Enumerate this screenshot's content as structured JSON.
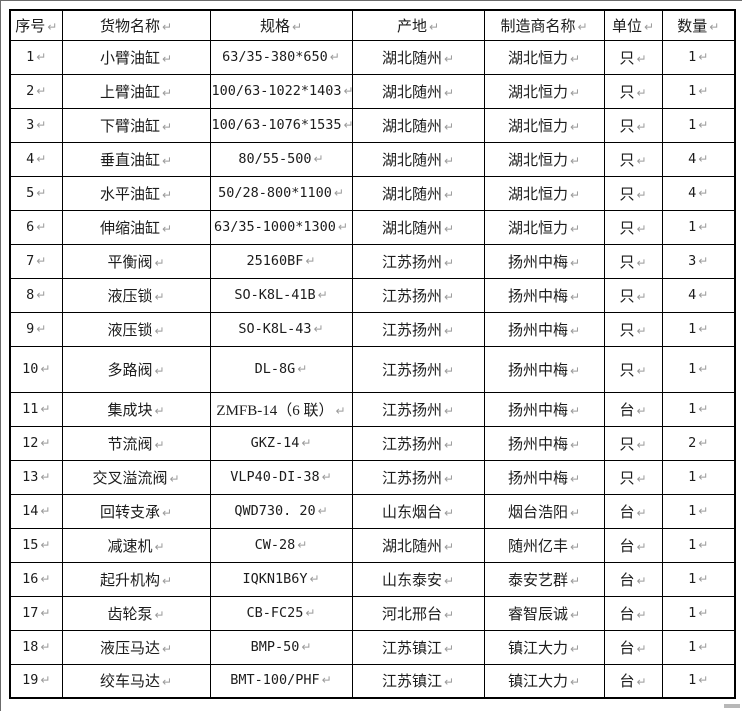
{
  "table": {
    "return_mark": "↵",
    "columns": [
      "序号",
      "货物名称",
      "规格",
      "产地",
      "制造商名称",
      "单位",
      "数量"
    ],
    "rows": [
      [
        "1",
        "小臂油缸",
        "63/35-380*650",
        "湖北随州",
        "湖北恒力",
        "只",
        "1"
      ],
      [
        "2",
        "上臂油缸",
        "100/63-1022*1403",
        "湖北随州",
        "湖北恒力",
        "只",
        "1"
      ],
      [
        "3",
        "下臂油缸",
        "100/63-1076*1535",
        "湖北随州",
        "湖北恒力",
        "只",
        "1"
      ],
      [
        "4",
        "垂直油缸",
        "80/55-500",
        "湖北随州",
        "湖北恒力",
        "只",
        "4"
      ],
      [
        "5",
        "水平油缸",
        "50/28-800*1100",
        "湖北随州",
        "湖北恒力",
        "只",
        "4"
      ],
      [
        "6",
        "伸缩油缸",
        "63/35-1000*1300",
        "湖北随州",
        "湖北恒力",
        "只",
        "1"
      ],
      [
        "7",
        "平衡阀",
        "25160BF",
        "江苏扬州",
        "扬州中梅",
        "只",
        "3"
      ],
      [
        "8",
        "液压锁",
        "SO-K8L-41B",
        "江苏扬州",
        "扬州中梅",
        "只",
        "4"
      ],
      [
        "9",
        "液压锁",
        "SO-K8L-43",
        "江苏扬州",
        "扬州中梅",
        "只",
        "1"
      ],
      [
        "10",
        "多路阀",
        "DL-8G",
        "江苏扬州",
        "扬州中梅",
        "只",
        "1"
      ],
      [
        "11",
        "集成块",
        "ZMFB-14（6 联）",
        "江苏扬州",
        "扬州中梅",
        "台",
        "1"
      ],
      [
        "12",
        "节流阀",
        "GKZ-14",
        "江苏扬州",
        "扬州中梅",
        "只",
        "2"
      ],
      [
        "13",
        "交叉溢流阀",
        "VLP40-DI-38",
        "江苏扬州",
        "扬州中梅",
        "只",
        "1"
      ],
      [
        "14",
        "回转支承",
        "QWD730. 20",
        "山东烟台",
        "烟台浩阳",
        "台",
        "1"
      ],
      [
        "15",
        "减速机",
        "CW-28",
        "湖北随州",
        "随州亿丰",
        "台",
        "1"
      ],
      [
        "16",
        "起升机构",
        "IQKN1B6Y",
        "山东泰安",
        "泰安艺群",
        "台",
        "1"
      ],
      [
        "17",
        "齿轮泵",
        "CB-FC25",
        "河北邢台",
        "睿智辰诚",
        "台",
        "1"
      ],
      [
        "18",
        "液压马达",
        "BMP-50",
        "江苏镇江",
        "镇江大力",
        "台",
        "1"
      ],
      [
        "19",
        "绞车马达",
        "BMT-100/PHF",
        "江苏镇江",
        "镇江大力",
        "台",
        "1"
      ]
    ],
    "tall_row_serial": "10"
  }
}
